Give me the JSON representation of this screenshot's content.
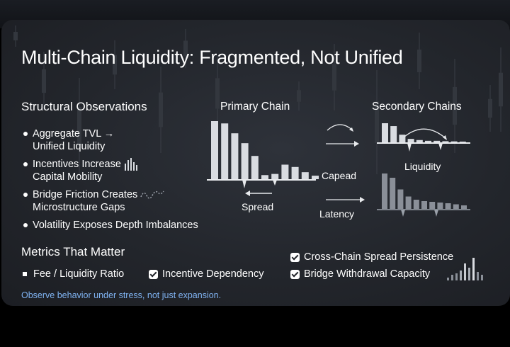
{
  "title": "Multi-Chain Liquidity: Fragmented, Not Unified",
  "structural": {
    "heading": "Structural Observations",
    "items": [
      {
        "line1": "Aggregate TVL →",
        "line2": "Unified Liquidity",
        "icon": "none"
      },
      {
        "line1": "Incentives Increase",
        "line2": "Capital Mobility",
        "icon": "mini-bars-icon"
      },
      {
        "line1": "Bridge Friction Creates",
        "line2": "Microstructure Gaps",
        "icon": "squiggle-bars-icon"
      },
      {
        "line1": "Volatility Exposes Depth Imbalances",
        "line2": "",
        "icon": "none"
      }
    ]
  },
  "diagram": {
    "primary_label": "Primary Chain",
    "secondary_label": "Secondary Chains",
    "spread_label": "Spread",
    "capead_label": "Capead",
    "latency_label": "Latency",
    "liquidity_label": "Liquidity",
    "primary_depth": [
      100,
      96,
      79,
      62,
      40,
      7,
      9,
      25,
      21,
      12,
      6
    ],
    "secondary_top_depth": [
      100,
      85,
      40,
      18,
      12,
      8,
      8,
      6,
      5,
      4
    ],
    "secondary_bottom_depth": [
      100,
      88,
      55,
      35,
      26,
      22,
      20,
      18,
      16,
      13,
      10
    ]
  },
  "metrics": {
    "heading": "Metrics That Matter",
    "items": [
      {
        "label": "Fee / Liquidity Ratio",
        "marker": "square"
      },
      {
        "label": "Incentive Dependency",
        "marker": "check"
      },
      {
        "label": "Cross-Chain Spread Persistence",
        "marker": "check"
      },
      {
        "label": "Bridge Withdrawal Capacity",
        "marker": "check"
      }
    ]
  },
  "footnote": "Observe behavior under stress, not just expansion.",
  "colors": {
    "background": "#23262c",
    "text": "#ffffff",
    "bars": "#d9dce1",
    "muted_bars": "#8a8f98",
    "accent_footnote": "#7fb2f0"
  }
}
